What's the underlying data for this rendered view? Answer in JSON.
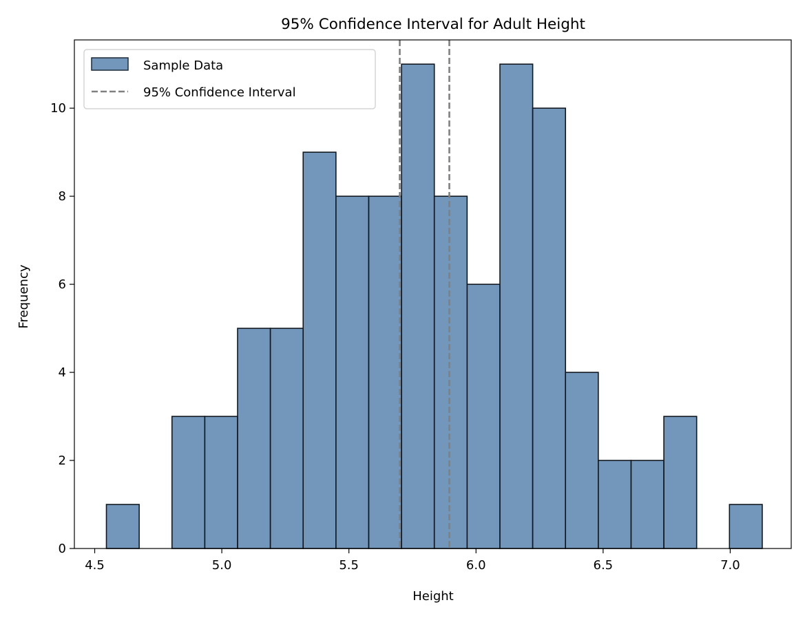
{
  "chart_data": {
    "type": "bar",
    "title": "95% Confidence Interval for Adult Height",
    "xlabel": "Height",
    "ylabel": "Frequency",
    "xlim": [
      4.42,
      7.24
    ],
    "ylim": [
      0,
      11.55
    ],
    "x_ticks": [
      4.5,
      5.0,
      5.5,
      6.0,
      6.5,
      7.0
    ],
    "x_tick_labels": [
      "4.5",
      "5.0",
      "5.5",
      "6.0",
      "6.5",
      "7.0"
    ],
    "y_ticks": [
      0,
      2,
      4,
      6,
      8,
      10
    ],
    "y_tick_labels": [
      "0",
      "2",
      "4",
      "6",
      "8",
      "10"
    ],
    "bin_edges": [
      4.546,
      4.675,
      4.804,
      4.933,
      5.062,
      5.191,
      5.32,
      5.449,
      5.578,
      5.707,
      5.836,
      5.965,
      6.094,
      6.223,
      6.352,
      6.481,
      6.61,
      6.739,
      6.868,
      6.997,
      7.126
    ],
    "series": [
      {
        "name": "Sample Data",
        "values": [
          1,
          0,
          3,
          3,
          5,
          5,
          9,
          8,
          8,
          11,
          8,
          6,
          11,
          10,
          4,
          2,
          2,
          3,
          0,
          1
        ],
        "color": "#4a7aa7"
      }
    ],
    "ci_lines": {
      "name": "95% Confidence Interval",
      "values": [
        5.7,
        5.895
      ],
      "color": "#808080",
      "style": "dashed"
    },
    "grid": false,
    "legend": {
      "placement": "top-left",
      "entries": [
        "Sample Data",
        "95% Confidence Interval"
      ]
    }
  }
}
